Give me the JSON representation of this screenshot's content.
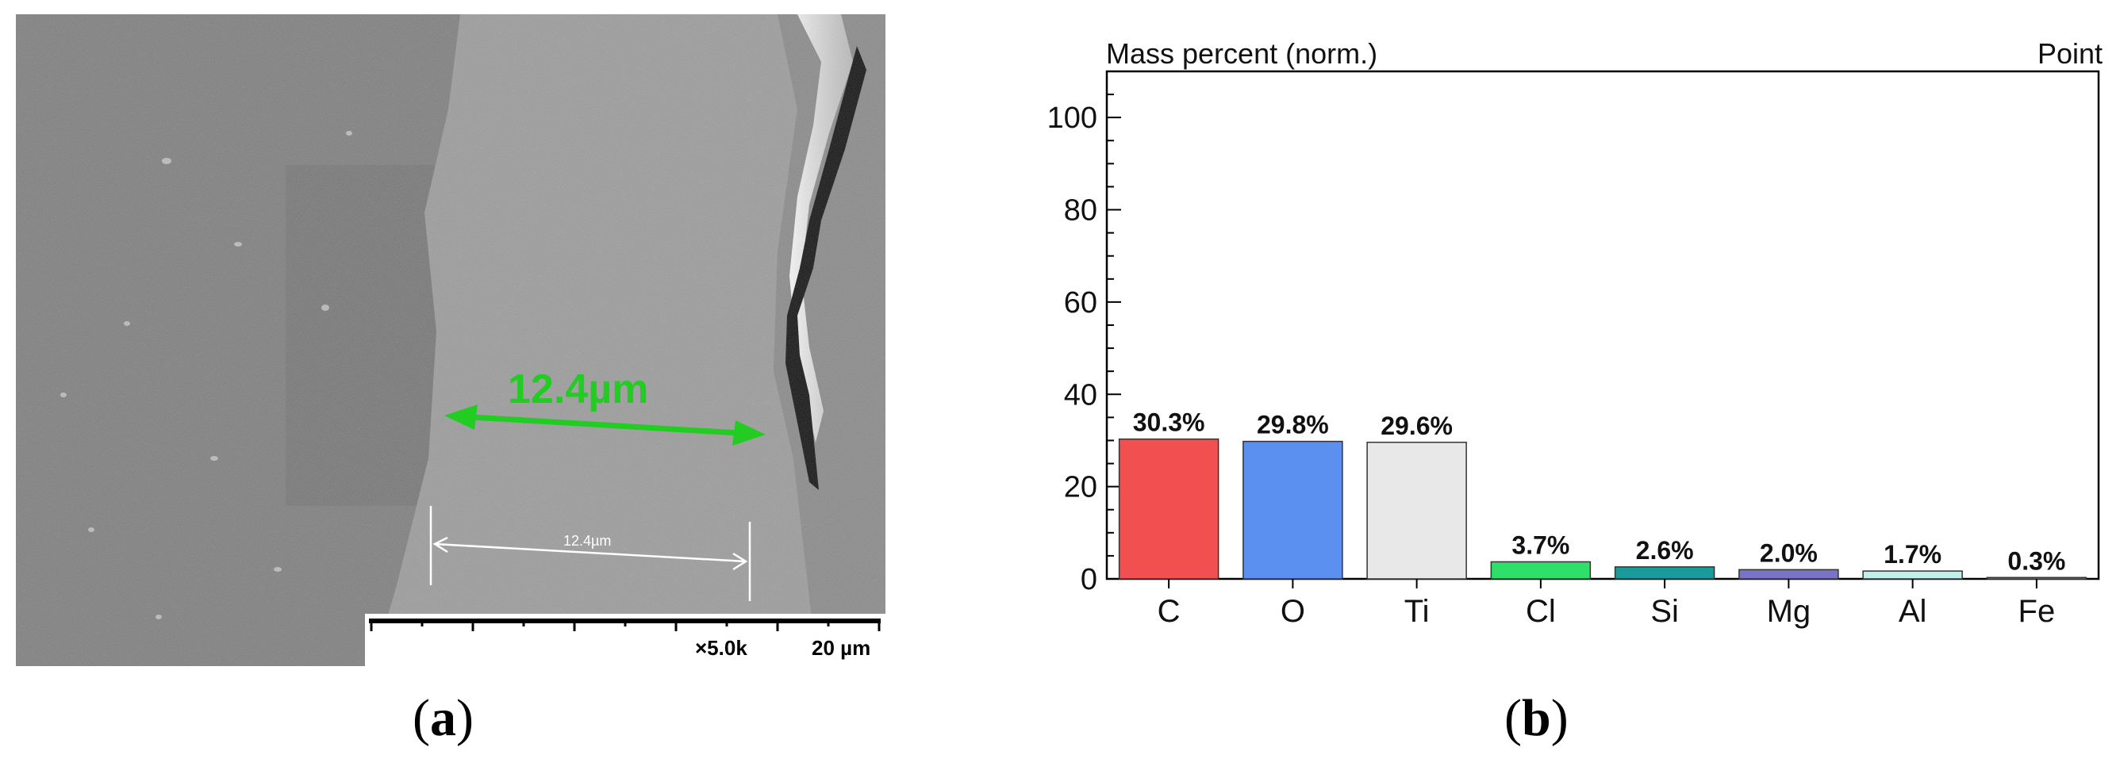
{
  "panel_a": {
    "measurement_label": "12.4µm",
    "inner_measurement_label": "12.4µm",
    "magnification": "×5.0k",
    "scale_bar_label": "20 µm",
    "annotation_color": "#22cc22",
    "caption_letter": "a"
  },
  "panel_b": {
    "caption_letter": "b"
  },
  "chart_data": {
    "type": "bar",
    "title": "Mass percent (norm.)",
    "mode_label": "Point",
    "xlabel": "",
    "ylabel": "",
    "ylim": [
      0,
      110
    ],
    "yticks": [
      0,
      20,
      40,
      60,
      80,
      100
    ],
    "grid": false,
    "categories": [
      "C",
      "O",
      "Ti",
      "Cl",
      "Si",
      "Mg",
      "Al",
      "Fe"
    ],
    "values": [
      30.3,
      29.8,
      29.6,
      3.7,
      2.6,
      2.0,
      1.7,
      0.3
    ],
    "value_labels": [
      "30.3%",
      "29.8%",
      "29.6%",
      "3.7%",
      "2.6%",
      "2.0%",
      "1.7%",
      "0.3%"
    ],
    "colors": [
      "#f25050",
      "#5b8ff0",
      "#e8e8e8",
      "#2ee06a",
      "#1a9a9a",
      "#7a74c8",
      "#bff0ea",
      "#f7f4e0"
    ]
  }
}
